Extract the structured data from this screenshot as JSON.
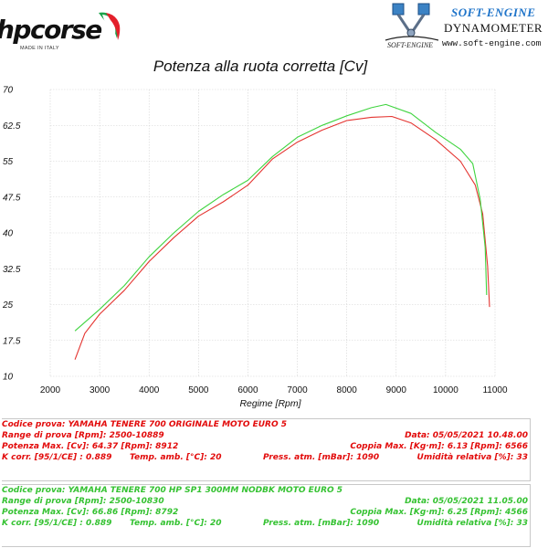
{
  "header": {
    "brand_word": "hpcorse",
    "brand_sub": "MADE IN ITALY",
    "partner_title": "SOFT-ENGINE",
    "partner_sub": "DYNAMOMETER",
    "partner_url": "www.soft-engine.com",
    "partner_logo_text": "SOFT-ENGINE"
  },
  "colors": {
    "series_original": "#e4332f",
    "series_hp": "#3fd43f",
    "red_text": "#e20b0b",
    "green_text": "#35c232"
  },
  "chart_data": {
    "type": "line",
    "title": "Potenza alla ruota corretta [Cv]",
    "xlabel": "Regime [Rpm]",
    "ylabel": "",
    "xlim": [
      2000,
      11000
    ],
    "ylim": [
      10,
      70
    ],
    "x_ticks": [
      2000,
      3000,
      4000,
      5000,
      6000,
      7000,
      8000,
      9000,
      10000,
      11000
    ],
    "y_ticks": [
      10,
      17.5,
      25,
      32.5,
      40,
      47.5,
      55,
      62.5,
      70
    ],
    "y_tick_labels": [
      "10",
      "17.5",
      "25",
      "32.5",
      "40",
      "47.5",
      "55",
      "62.5",
      "70"
    ],
    "grid": true,
    "series": [
      {
        "key": "original",
        "color": "#e4332f",
        "points": [
          [
            2500,
            13.5
          ],
          [
            2700,
            19
          ],
          [
            3000,
            23
          ],
          [
            3500,
            28
          ],
          [
            4000,
            34
          ],
          [
            4500,
            39
          ],
          [
            5000,
            43.5
          ],
          [
            5500,
            46.5
          ],
          [
            6000,
            50
          ],
          [
            6500,
            55.5
          ],
          [
            7000,
            59
          ],
          [
            7500,
            61.5
          ],
          [
            8000,
            63.5
          ],
          [
            8500,
            64.2
          ],
          [
            8912,
            64.37
          ],
          [
            9300,
            63
          ],
          [
            9800,
            59.5
          ],
          [
            10300,
            55
          ],
          [
            10600,
            50
          ],
          [
            10750,
            44
          ],
          [
            10850,
            33
          ],
          [
            10889,
            24.5
          ]
        ]
      },
      {
        "key": "hp",
        "color": "#3fd43f",
        "points": [
          [
            2500,
            19.5
          ],
          [
            3000,
            24
          ],
          [
            3500,
            29
          ],
          [
            4000,
            35
          ],
          [
            4500,
            40
          ],
          [
            5000,
            44.5
          ],
          [
            5500,
            48
          ],
          [
            6000,
            51
          ],
          [
            6500,
            56
          ],
          [
            7000,
            60
          ],
          [
            7500,
            62.5
          ],
          [
            8000,
            64.5
          ],
          [
            8500,
            66.2
          ],
          [
            8792,
            66.86
          ],
          [
            9300,
            65
          ],
          [
            9800,
            61
          ],
          [
            10300,
            57.5
          ],
          [
            10550,
            54.5
          ],
          [
            10700,
            47
          ],
          [
            10800,
            37
          ],
          [
            10830,
            27
          ]
        ]
      }
    ]
  },
  "tests": [
    {
      "color_key": "red",
      "code": "Codice prova: YAMAHA TENERE 700 ORIGINALE  MOTO EURO 5",
      "range": "Range di prova [Rpm]: 2500-10889",
      "date": "Data: 05/05/2021  10.48.00",
      "power": "Potenza Max. [Cv]: 64.37  [Rpm]: 8912",
      "torque": "Coppia Max. [Kg·m]: 6.13  [Rpm]: 6566",
      "kcorr": "K corr. [95/1/CE] : 0.889",
      "temp": "Temp. amb. [°C]: 20",
      "press": "Press. atm. [mBar]: 1090",
      "humidity": "Umidità relativa [%]: 33"
    },
    {
      "color_key": "green",
      "code": "Codice prova: YAMAHA TENERE 700 HP SP1 300MM NODBK  MOTO EURO 5",
      "range": "Range di prova [Rpm]: 2500-10830",
      "date": "Data: 05/05/2021  11.05.00",
      "power": "Potenza Max. [Cv]: 66.86  [Rpm]: 8792",
      "torque": "Coppia Max. [Kg·m]: 6.25  [Rpm]: 4566",
      "kcorr": "K corr. [95/1/CE] : 0.889",
      "temp": "Temp. amb. [°C]: 20",
      "press": "Press. atm. [mBar]: 1090",
      "humidity": "Umidità relativa [%]: 33"
    }
  ]
}
